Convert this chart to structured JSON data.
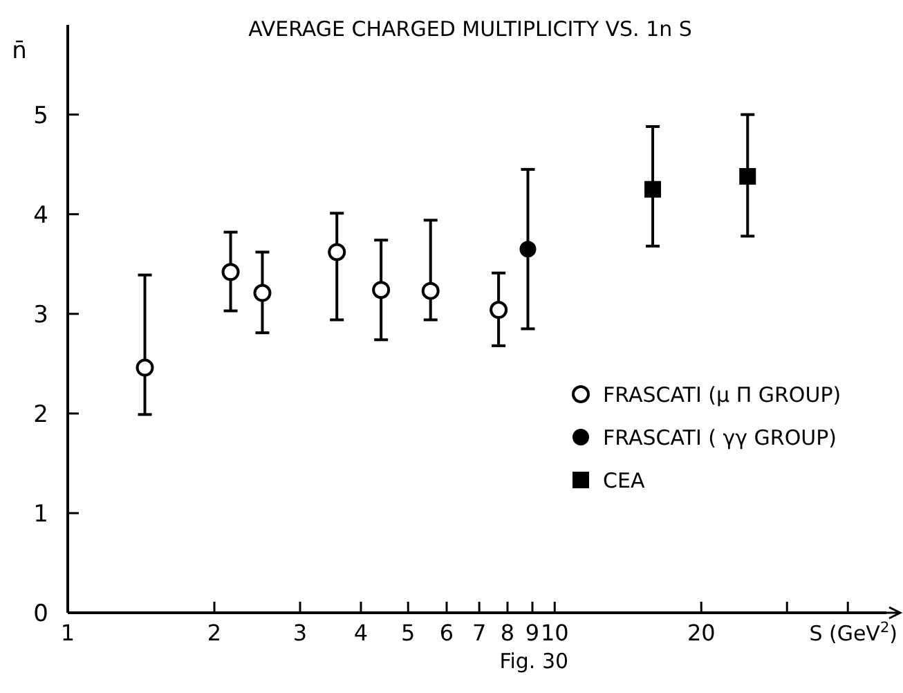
{
  "chart_data": {
    "type": "scatter",
    "title": "AVERAGE CHARGED MULTIPLICITY  VS. 1n S",
    "xlabel": "S (GeV$^{2}$)",
    "ylabel": "n̄",
    "log": "x",
    "xlim": [
      1,
      48
    ],
    "ylim": [
      0,
      5.9
    ],
    "xticks": [
      1,
      2,
      3,
      4,
      5,
      6,
      7,
      8,
      9,
      10,
      20,
      {
        "value": 30,
        "label": null
      },
      {
        "value": 40,
        "label": null
      }
    ],
    "yticks": [
      0,
      1,
      2,
      3,
      4,
      5
    ],
    "grid": false,
    "legend": "right",
    "series": [
      {
        "name": "FRASCATI (μ Π  GROUP)",
        "color": "#ffffff",
        "marker": "circle",
        "x": [
          1.44,
          2.16,
          2.51,
          3.57,
          4.4,
          5.56,
          7.67
        ],
        "values": [
          2.46,
          3.42,
          3.21,
          3.62,
          3.24,
          3.23,
          3.04
        ],
        "errors": [
          [
            1.99,
            3.39
          ],
          [
            3.03,
            3.82
          ],
          [
            2.81,
            3.62
          ],
          [
            2.94,
            4.01
          ],
          [
            2.74,
            3.74
          ],
          [
            2.94,
            3.94
          ],
          [
            2.68,
            3.41
          ]
        ]
      },
      {
        "name": "FRASCATI ( γγ GROUP)",
        "color": "#000000",
        "marker": "circle",
        "x": [
          8.81
        ],
        "values": [
          3.65
        ],
        "errors": [
          [
            2.85,
            4.45
          ]
        ]
      },
      {
        "name": "CEA",
        "color": "#000000",
        "marker": "square",
        "x": [
          15.9,
          24.9
        ],
        "values": [
          4.25,
          4.38
        ],
        "errors": [
          [
            3.68,
            4.88
          ],
          [
            3.78,
            5.0
          ]
        ]
      }
    ],
    "annotations": [
      "Fig. 30"
    ]
  }
}
